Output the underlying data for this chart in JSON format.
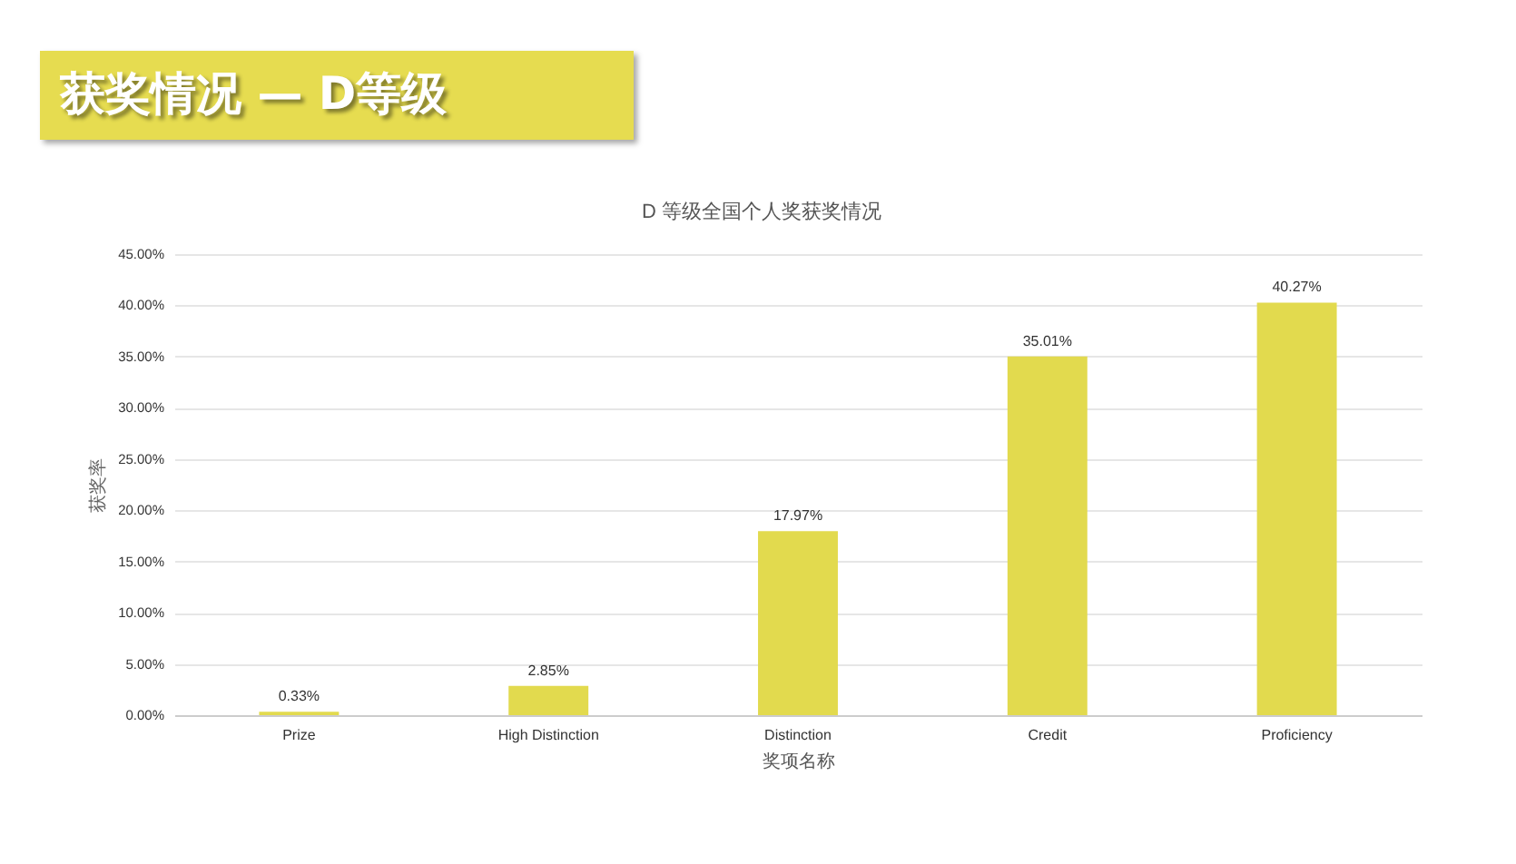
{
  "chart_data": {
    "type": "bar",
    "title": "获奖情况 — D等级",
    "subtitle": "D 等级全国个人奖获奖情况",
    "xlabel": "奖项名称",
    "ylabel": "获奖率",
    "categories": [
      "Prize",
      "High Distinction",
      "Distinction",
      "Credit",
      "Proficiency"
    ],
    "values": [
      0.33,
      2.85,
      17.97,
      35.01,
      40.27
    ],
    "value_labels": [
      "0.33%",
      "2.85%",
      "17.97%",
      "35.01%",
      "40.27%"
    ],
    "color": "#e2da4e",
    "ylim": [
      0,
      45
    ],
    "yticks": [
      {
        "value": 0,
        "label": "0.00%"
      },
      {
        "value": 5,
        "label": "5.00%"
      },
      {
        "value": 10,
        "label": "10.00%"
      },
      {
        "value": 15,
        "label": "15.00%"
      },
      {
        "value": 20,
        "label": "20.00%"
      },
      {
        "value": 25,
        "label": "25.00%"
      },
      {
        "value": 30,
        "label": "30.00%"
      },
      {
        "value": 35,
        "label": "35.00%"
      },
      {
        "value": 40,
        "label": "40.00%"
      },
      {
        "value": 45,
        "label": "45.00%"
      }
    ],
    "grid": "y"
  }
}
